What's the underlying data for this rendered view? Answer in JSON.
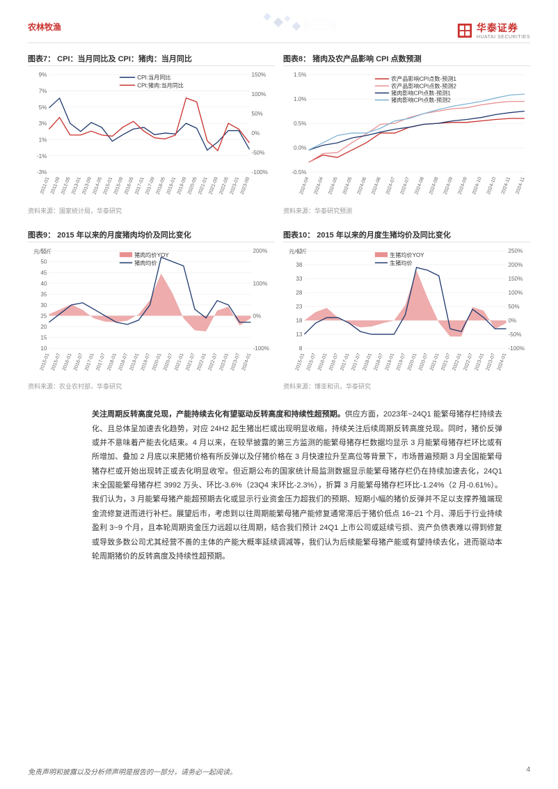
{
  "header": {
    "category": "农林牧渔",
    "logo_cn": "华泰证券",
    "logo_en": "HUATAI SECURITIES"
  },
  "chart7": {
    "title": "图表7：  CPI：当月同比及 CPI：猪肉：当月同比",
    "source": "资料来源：国家统计局，华泰研究",
    "type": "line-dual-axis",
    "legend": [
      "CPI:当月同比",
      "CPI:猪肉:当月同比"
    ],
    "legend_colors": [
      "#1f3a6e",
      "#c9302c"
    ],
    "x_labels": [
      "2011-01",
      "2011-09",
      "2012-05",
      "2013-01",
      "2013-09",
      "2014-05",
      "2015-01",
      "2015-09",
      "2016-05",
      "2017-01",
      "2017-09",
      "2018-05",
      "2019-01",
      "2019-09",
      "2020-05",
      "2021-01",
      "2021-09",
      "2022-05",
      "2023-01",
      "2023-09"
    ],
    "y_left": {
      "min": -3,
      "max": 9,
      "step": 2,
      "unit": "%",
      "ticks": [
        -3,
        -1,
        1,
        3,
        5,
        7,
        9
      ]
    },
    "y_right": {
      "min": -100,
      "max": 150,
      "step": 50,
      "unit": "%",
      "ticks": [
        -100,
        -50,
        0,
        50,
        100,
        150
      ]
    },
    "series1_values": [
      4.9,
      6.1,
      3.0,
      2.0,
      3.1,
      2.5,
      0.8,
      1.6,
      2.3,
      2.5,
      1.6,
      1.8,
      1.7,
      3.0,
      2.4,
      -0.3,
      0.7,
      2.1,
      2.1,
      -0.2
    ],
    "series2_values": [
      10,
      40,
      -5,
      -5,
      5,
      -5,
      -8,
      15,
      30,
      5,
      -12,
      -15,
      -5,
      90,
      80,
      -20,
      -45,
      25,
      10,
      -25
    ],
    "background": "#ffffff",
    "grid_color": "#e8e8e8"
  },
  "chart8": {
    "title": "图表8：  猪肉及农产品影响 CPI 点数预测",
    "source": "资料来源：华泰研究预测",
    "type": "line",
    "legend": [
      "农产品影响CPI点数-预测1",
      "农产品影响CPI点数-预测2",
      "猪肉影响CPI点数-预测1",
      "猪肉影响CPI点数-预测2"
    ],
    "legend_colors": [
      "#c9302c",
      "#e89090",
      "#1f3a6e",
      "#7fb3d5"
    ],
    "x_labels": [
      "2024-04",
      "2024-04",
      "2024-05",
      "2024-05",
      "2024-06",
      "2024-06",
      "2024-07",
      "2024-07",
      "2024-08",
      "2024-08",
      "2024-09",
      "2024-09",
      "2024-10",
      "2024-10",
      "2024-11",
      "2024-11"
    ],
    "y": {
      "min": -0.5,
      "max": 1.5,
      "step": 0.5,
      "unit": "%",
      "ticks": [
        -0.5,
        0.0,
        0.5,
        1.0,
        1.5
      ]
    },
    "series1_values": [
      -0.3,
      -0.15,
      -0.2,
      -0.05,
      0.1,
      0.3,
      0.3,
      0.42,
      0.48,
      0.5,
      0.52,
      0.52,
      0.55,
      0.58,
      0.6,
      0.6
    ],
    "series2_values": [
      -0.3,
      -0.12,
      -0.1,
      0.1,
      0.28,
      0.48,
      0.5,
      0.62,
      0.7,
      0.75,
      0.8,
      0.82,
      0.88,
      0.92,
      0.95,
      0.95
    ],
    "series3_values": [
      -0.05,
      0.05,
      0.1,
      0.2,
      0.25,
      0.32,
      0.38,
      0.42,
      0.48,
      0.5,
      0.55,
      0.58,
      0.62,
      0.68,
      0.72,
      0.75
    ],
    "series4_values": [
      -0.05,
      0.1,
      0.25,
      0.3,
      0.3,
      0.4,
      0.55,
      0.6,
      0.7,
      0.78,
      0.85,
      0.9,
      0.95,
      1.02,
      1.08,
      1.1
    ],
    "background": "#ffffff",
    "grid_color": "#e8e8e8"
  },
  "chart9": {
    "title": "图表9：  2015 年以来的月度猪肉均价及同比变化",
    "source": "资料来源：农业农村部，华泰研究",
    "type": "area+line-dual-axis",
    "y_left_label": "元/公斤",
    "legend": [
      "猪肉均价YOY",
      "猪肉均价"
    ],
    "legend_colors": [
      "#e89090",
      "#1f3a6e"
    ],
    "x_labels": [
      "2015-01",
      "2015-07",
      "2016-01",
      "2016-07",
      "2017-01",
      "2017-07",
      "2018-01",
      "2018-07",
      "2019-01",
      "2019-07",
      "2020-01",
      "2020-07",
      "2021-01",
      "2021-07",
      "2022-01",
      "2022-07",
      "2023-01",
      "2023-07",
      "2024-01"
    ],
    "y_left": {
      "min": 10,
      "max": 55,
      "step": 5,
      "ticks": [
        10,
        15,
        20,
        25,
        30,
        35,
        40,
        45,
        50,
        55
      ]
    },
    "y_right": {
      "min": -100,
      "max": 200,
      "step": 100,
      "unit": "%",
      "ticks": [
        -100,
        0,
        100,
        200
      ]
    },
    "line_values": [
      22,
      26,
      30,
      31,
      28,
      25,
      22,
      21,
      23,
      30,
      52,
      50,
      48,
      28,
      24,
      32,
      30,
      22,
      22
    ],
    "area_values": [
      5,
      20,
      35,
      18,
      -8,
      -18,
      -20,
      -15,
      5,
      48,
      130,
      70,
      -8,
      -45,
      -48,
      16,
      28,
      -30,
      -8
    ],
    "background": "#ffffff",
    "grid_color": "#e8e8e8"
  },
  "chart10": {
    "title": "图表10：  2015 年以来的月度生猪均价及同比变化",
    "source": "资料来源：博亚和讯，华泰研究",
    "type": "area+line-dual-axis",
    "y_left_label": "元/公斤",
    "legend": [
      "生猪均价YOY",
      "生猪均价"
    ],
    "legend_colors": [
      "#e89090",
      "#1f3a6e"
    ],
    "x_labels": [
      "2015-01",
      "2015-07",
      "2016-01",
      "2016-07",
      "2017-01",
      "2017-07",
      "2018-01",
      "2018-07",
      "2019-01",
      "2019-07",
      "2020-01",
      "2020-07",
      "2021-01",
      "2021-07",
      "2022-01",
      "2022-07",
      "2023-01",
      "2023-07",
      "2024-01"
    ],
    "y_left": {
      "min": 8,
      "max": 43,
      "step": 5,
      "ticks": [
        8,
        13,
        18,
        23,
        28,
        33,
        38,
        43
      ]
    },
    "y_right": {
      "min": -100,
      "max": 250,
      "step": 50,
      "unit": "%",
      "ticks": [
        -100,
        -50,
        0,
        50,
        100,
        150,
        200,
        250
      ]
    },
    "line_values": [
      13,
      17,
      19,
      19,
      17,
      14,
      13,
      13,
      13,
      20,
      37,
      36,
      34,
      15,
      14,
      22,
      19,
      15,
      15
    ],
    "area_values": [
      0,
      30,
      45,
      10,
      -12,
      -25,
      -22,
      -10,
      0,
      55,
      180,
      80,
      -8,
      -58,
      -58,
      48,
      35,
      -30,
      -10
    ],
    "background": "#ffffff",
    "grid_color": "#e8e8e8"
  },
  "body_paragraph": {
    "bold_lead": "关注周期反转高度兑现，产能持续去化有望驱动反转高度和持续性超预期。",
    "text": "供应方面，2023年~24Q1 能繁母猪存栏持续去化、且总体呈加速去化趋势，对应 24H2 起生猪出栏或出现明显收缩，持续关注后续周期反转高度兑现。同时，猪价反弹或并不意味着产能去化结束。4 月以来，在较早披露的第三方监测的能繁母猪存栏数据均显示 3 月能繁母猪存栏环比或有所增加、叠加 2 月底以来肥猪价格有所反弹以及仔猪价格在 3 月快速拉升至高位等背景下，市场普遍预期 3 月全国能繁母猪存栏或开始出现转正或去化明显收窄。但近期公布的国家统计局监测数据显示能繁母猪存栏仍在持续加速去化，24Q1 末全国能繁母猪存栏 3992 万头、环比-3.6%（23Q4 末环比-2.3%），折算 3 月能繁母猪存栏环比-1.24%（2 月-0.61%）。我们认为，3 月能繁母猪产能超预期去化或显示行业资金压力超我们的预期、短期小幅的猪价反弹并不足以支撑养殖端现金流修复进而进行补栏。展望后市，考虑到以往周期能繁母猪产能修复通常滞后于猪价低点 16~21 个月、滞后于行业持续盈利 3~9 个月，且本轮周期资金压力远超以往周期，结合我们预计 24Q1 上市公司或延续亏损、资产负债表难以得到修复或导致多数公司尤其经营不善的主体的产能大概率延续调减等，我们认为后续能繁母猪产能或有望持续去化，进而驱动本轮周期猪价的反转高度及持续性超预期。"
  },
  "footer": {
    "disclaimer": "免责声明和披露以及分析师声明是报告的一部分，请务必一起阅读。",
    "page": "4"
  }
}
